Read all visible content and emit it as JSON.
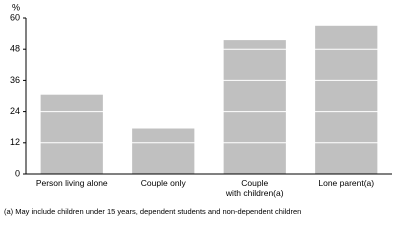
{
  "chart_data": {
    "type": "bar",
    "y_axis_label": "%",
    "categories": [
      "Person living alone",
      "Couple only",
      "Couple\nwith children(a)",
      "Lone parent(a)"
    ],
    "values": [
      30.5,
      17.5,
      51.5,
      57
    ],
    "color": "#c0c0c0",
    "ylim": [
      0,
      60
    ],
    "yticks": [
      0,
      12,
      24,
      36,
      48,
      60
    ],
    "grid": true,
    "grid_color": "#ffffff",
    "footnote": "(a) May include children under 15 years, dependent students and non-dependent children"
  }
}
